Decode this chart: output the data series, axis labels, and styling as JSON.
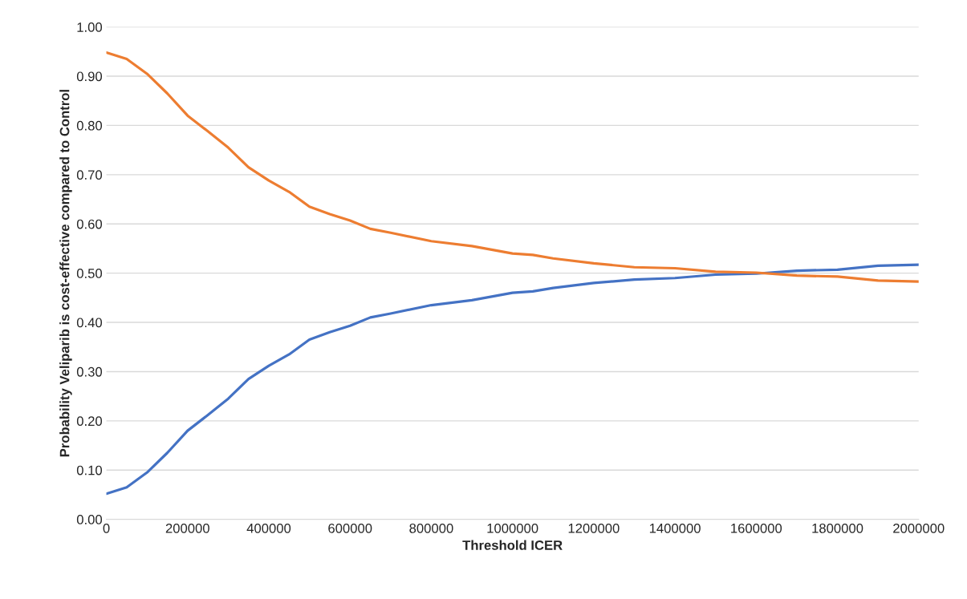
{
  "chart_data": {
    "type": "line",
    "xlabel": "Threshold ICER",
    "ylabel": "Probability Veliparib is cost-effective compared to Control",
    "x": [
      0,
      50000,
      100000,
      150000,
      200000,
      250000,
      300000,
      350000,
      400000,
      450000,
      500000,
      550000,
      600000,
      650000,
      700000,
      800000,
      900000,
      1000000,
      1050000,
      1100000,
      1200000,
      1300000,
      1400000,
      1500000,
      1600000,
      1700000,
      1800000,
      1900000,
      2000000
    ],
    "series": [
      {
        "color": "#4472c4",
        "values": [
          0.052,
          0.065,
          0.095,
          0.135,
          0.18,
          0.212,
          0.245,
          0.285,
          0.312,
          0.335,
          0.365,
          0.38,
          0.393,
          0.41,
          0.418,
          0.435,
          0.445,
          0.46,
          0.463,
          0.47,
          0.48,
          0.487,
          0.49,
          0.497,
          0.499,
          0.505,
          0.507,
          0.515,
          0.517
        ]
      },
      {
        "color": "#ed7d31",
        "values": [
          0.948,
          0.935,
          0.905,
          0.865,
          0.82,
          0.788,
          0.755,
          0.715,
          0.688,
          0.665,
          0.635,
          0.62,
          0.607,
          0.59,
          0.582,
          0.565,
          0.555,
          0.54,
          0.537,
          0.53,
          0.52,
          0.512,
          0.51,
          0.503,
          0.501,
          0.495,
          0.493,
          0.485,
          0.483
        ]
      }
    ],
    "xlim": [
      0,
      2000000
    ],
    "xticks": [
      0,
      200000,
      400000,
      600000,
      800000,
      1000000,
      1200000,
      1400000,
      1600000,
      1800000,
      2000000
    ],
    "ylim": [
      0,
      1
    ],
    "yticks": [
      {
        "value": 0,
        "label": "0.00"
      },
      {
        "value": 0.1,
        "label": "0.10"
      },
      {
        "value": 0.2,
        "label": "0.20"
      },
      {
        "value": 0.3,
        "label": "0.30"
      },
      {
        "value": 0.4,
        "label": "0.40"
      },
      {
        "value": 0.5,
        "label": "0.50"
      },
      {
        "value": 0.6,
        "label": "0.60"
      },
      {
        "value": 0.7,
        "label": "0.70"
      },
      {
        "value": 0.8,
        "label": "0.80"
      },
      {
        "value": 0.9,
        "label": "0.90"
      },
      {
        "value": 1,
        "label": "1.00"
      }
    ],
    "grid": "y",
    "legend": false,
    "marker": "none",
    "line_style": "solid"
  }
}
